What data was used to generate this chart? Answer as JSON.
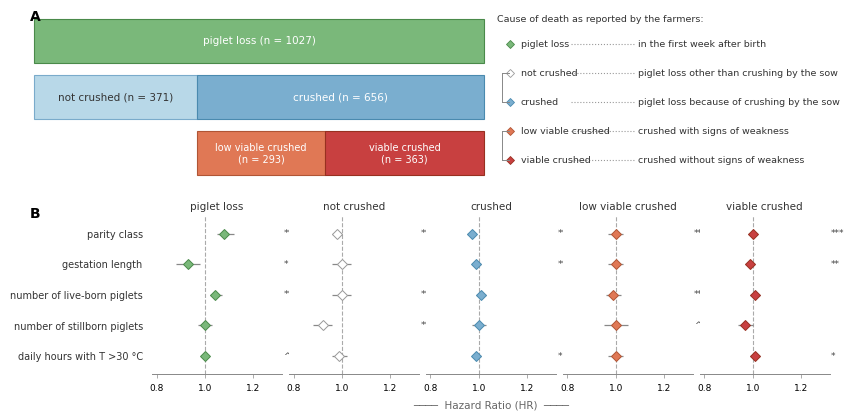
{
  "panel_A": {
    "bar1_color": "#7ab87a",
    "bar1_edge": "#4a8a4a",
    "bar1_label": "piglet loss (n = 1027)",
    "bar2a_color": "#b8d8e8",
    "bar2a_edge": "#7aabcb",
    "bar2a_label": "not crushed (n = 371)",
    "bar2b_color": "#7aaecf",
    "bar2b_edge": "#4a8aaf",
    "bar2b_label": "crushed (n = 656)",
    "bar3a_color": "#e07855",
    "bar3a_edge": "#b05535",
    "bar3a_label": "low viable crushed\n(n = 293)",
    "bar3b_color": "#c84040",
    "bar3b_edge": "#983020",
    "bar3b_label": "viable crushed\n(n = 363)",
    "n_total": 1027,
    "n_not_crushed": 371,
    "n_crushed": 656,
    "n_low_viable": 293,
    "n_viable": 363
  },
  "legend": {
    "title": "Cause of death as reported by the farmers:",
    "entries": [
      {
        "text1": "piglet loss",
        "text2": "in the first week after birth",
        "fc": "#7ab87a",
        "ec": "#4a8a4a"
      },
      {
        "text1": "not crushed",
        "text2": "piglet loss other than crushing by the sow",
        "fc": "white",
        "ec": "#999999"
      },
      {
        "text1": "crushed",
        "text2": "piglet loss because of crushing by the sow",
        "fc": "#7aaecf",
        "ec": "#4a8aaf"
      },
      {
        "text1": "low viable crushed",
        "text2": "crushed with signs of weakness",
        "fc": "#e07855",
        "ec": "#b05535"
      },
      {
        "text1": "viable crushed",
        "text2": "crushed without signs of weakness",
        "fc": "#c84040",
        "ec": "#983020"
      }
    ]
  },
  "panel_B": {
    "covariates": [
      "parity class",
      "gestation length",
      "number of live-born piglets",
      "number of stillborn piglets",
      "daily hours with T >30 °C"
    ],
    "events": [
      "piglet loss",
      "not crushed",
      "crushed",
      "low viable crushed",
      "viable crushed"
    ],
    "face_colors": [
      "#7ab87a",
      "white",
      "#7aaecf",
      "#e07855",
      "#c84040"
    ],
    "edge_colors": [
      "#4a8a4a",
      "#999999",
      "#4a8aaf",
      "#b05535",
      "#983020"
    ],
    "significance": [
      [
        "***",
        "*",
        "**",
        "",
        "^"
      ],
      [
        "**",
        "",
        "***",
        "**",
        ""
      ],
      [
        "***",
        "**",
        "",
        "",
        "*"
      ],
      [
        "**",
        "",
        "**",
        "^",
        ""
      ],
      [
        "***",
        "**",
        "",
        "",
        "*"
      ]
    ],
    "hr": [
      [
        1.08,
        0.93,
        1.04,
        1.0,
        1.0
      ],
      [
        0.98,
        1.0,
        1.0,
        0.92,
        0.99
      ],
      [
        0.97,
        0.99,
        1.01,
        1.0,
        0.99
      ],
      [
        1.0,
        1.0,
        0.99,
        1.0,
        1.0
      ],
      [
        1.0,
        0.99,
        1.01,
        0.97,
        1.01
      ]
    ],
    "ci_low": [
      [
        1.05,
        0.88,
        1.02,
        0.97,
        0.99
      ],
      [
        0.96,
        0.96,
        0.96,
        0.88,
        0.96
      ],
      [
        0.95,
        0.97,
        0.99,
        0.97,
        0.97
      ],
      [
        0.97,
        0.97,
        0.96,
        0.95,
        0.97
      ],
      [
        0.98,
        0.97,
        0.99,
        0.94,
        0.99
      ]
    ],
    "ci_high": [
      [
        1.12,
        0.98,
        1.07,
        1.03,
        1.01
      ],
      [
        1.0,
        1.04,
        1.04,
        0.96,
        1.02
      ],
      [
        0.99,
        1.01,
        1.03,
        1.03,
        1.01
      ],
      [
        1.03,
        1.03,
        1.02,
        1.05,
        1.03
      ],
      [
        1.02,
        1.01,
        1.03,
        1.0,
        1.03
      ]
    ],
    "xlim": [
      0.78,
      1.32
    ],
    "xticks": [
      0.8,
      1.0,
      1.2
    ],
    "xticklabels": [
      "0.8",
      "1.0",
      "1.2"
    ]
  }
}
